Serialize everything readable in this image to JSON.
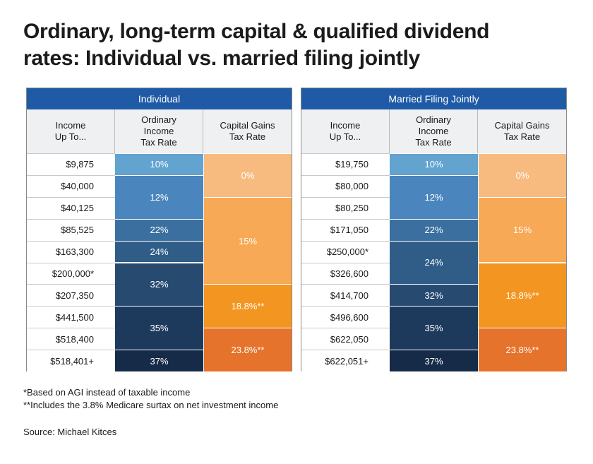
{
  "title_line1": "Ordinary, long-term capital & qualified dividend",
  "title_line2": "rates: Individual vs. married filing jointly",
  "column_headers": {
    "income": "Income\nUp To...",
    "ordinary": "Ordinary\nIncome\nTax Rate",
    "capital": "Capital Gains\nTax Rate"
  },
  "colors": {
    "header_blue": "#1f5aa6",
    "ord_10": "#62a3d0",
    "ord_12": "#4a86bd",
    "ord_22": "#3a6f9f",
    "ord_24": "#2f5d88",
    "ord_32": "#264a70",
    "ord_35": "#1d3a5c",
    "ord_37": "#152b48",
    "cap_0": "#f7bb80",
    "cap_15": "#f7a955",
    "cap_18": "#f39521",
    "cap_23": "#e5732b"
  },
  "chart_data": {
    "type": "table",
    "title": "Ordinary, long-term capital & qualified dividend rates: Individual vs. married filing jointly",
    "tables": [
      {
        "id": "individual",
        "header": "Individual",
        "income": [
          "$9,875",
          "$40,000",
          "$40,125",
          "$85,525",
          "$163,300",
          "$200,000*",
          "$207,350",
          "$441,500",
          "$518,400",
          "$518,401+"
        ],
        "ordinary": [
          {
            "label": "10%",
            "start": 0,
            "span": 1,
            "color": "#62a3d0"
          },
          {
            "label": "12%",
            "start": 1,
            "span": 2,
            "color": "#4a86bd"
          },
          {
            "label": "22%",
            "start": 3,
            "span": 1,
            "color": "#3a6f9f"
          },
          {
            "label": "24%",
            "start": 4,
            "span": 1,
            "color": "#2f5d88"
          },
          {
            "label": "32%",
            "start": 5,
            "span": 2,
            "color": "#264a70"
          },
          {
            "label": "35%",
            "start": 7,
            "span": 2,
            "color": "#1d3a5c"
          },
          {
            "label": "37%",
            "start": 9,
            "span": 1,
            "color": "#152b48"
          }
        ],
        "capital": [
          {
            "label": "0%",
            "start": 0,
            "span": 2,
            "color": "#f7bb80"
          },
          {
            "label": "15%",
            "start": 2,
            "span": 4,
            "color": "#f7a955"
          },
          {
            "label": "18.8%**",
            "start": 6,
            "span": 2,
            "color": "#f39521"
          },
          {
            "label": "23.8%**",
            "start": 8,
            "span": 2,
            "color": "#e5732b"
          }
        ]
      },
      {
        "id": "married",
        "header": "Married Filing Jointly",
        "income": [
          "$19,750",
          "$80,000",
          "$80,250",
          "$171,050",
          "$250,000*",
          "$326,600",
          "$414,700",
          "$496,600",
          "$622,050",
          "$622,051+"
        ],
        "ordinary": [
          {
            "label": "10%",
            "start": 0,
            "span": 1,
            "color": "#62a3d0"
          },
          {
            "label": "12%",
            "start": 1,
            "span": 2,
            "color": "#4a86bd"
          },
          {
            "label": "22%",
            "start": 3,
            "span": 1,
            "color": "#3a6f9f"
          },
          {
            "label": "24%",
            "start": 4,
            "span": 2,
            "color": "#2f5d88"
          },
          {
            "label": "32%",
            "start": 6,
            "span": 1,
            "color": "#264a70"
          },
          {
            "label": "35%",
            "start": 7,
            "span": 2,
            "color": "#1d3a5c"
          },
          {
            "label": "37%",
            "start": 9,
            "span": 1,
            "color": "#152b48"
          }
        ],
        "capital": [
          {
            "label": "0%",
            "start": 0,
            "span": 2,
            "color": "#f7bb80"
          },
          {
            "label": "15%",
            "start": 2,
            "span": 3,
            "color": "#f7a955"
          },
          {
            "label": "18.8%**",
            "start": 5,
            "span": 3,
            "color": "#f39521"
          },
          {
            "label": "23.8%**",
            "start": 8,
            "span": 2,
            "color": "#e5732b"
          }
        ]
      }
    ]
  },
  "footnotes": {
    "note1": "*Based on AGI instead of taxable income",
    "note2": "**Includes the 3.8% Medicare surtax on net investment income"
  },
  "source": "Source: Michael Kitces"
}
